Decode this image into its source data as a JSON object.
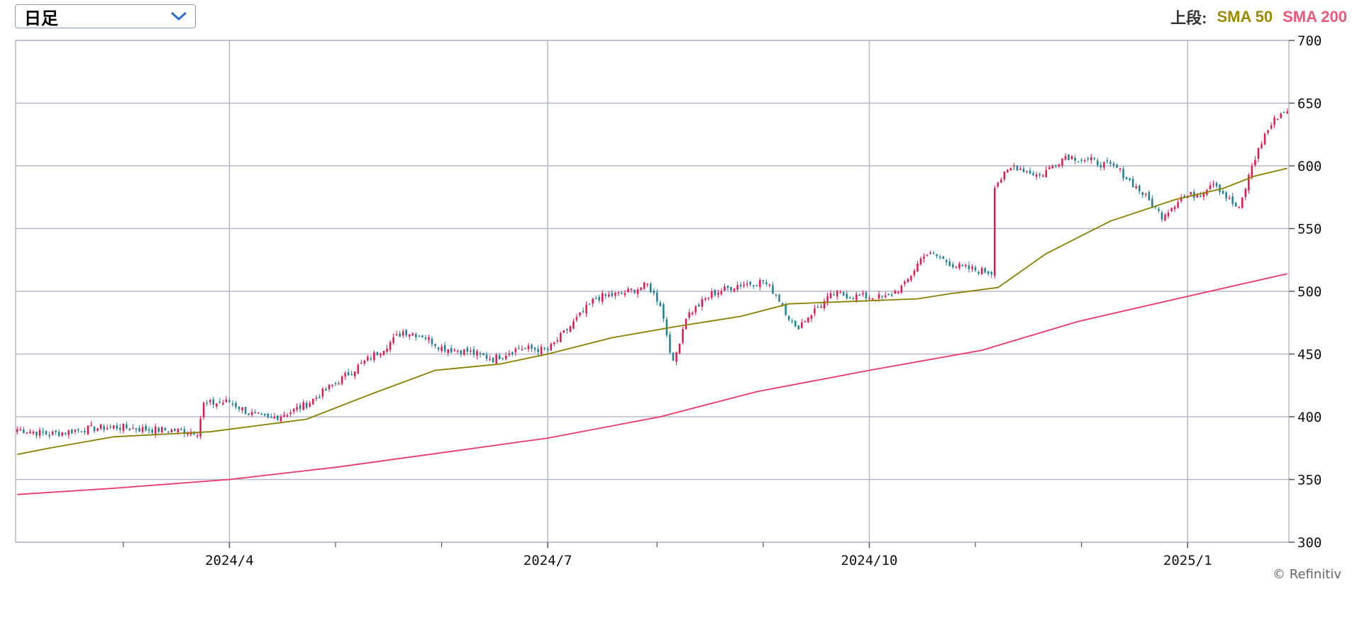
{
  "period_select": {
    "value": "日足"
  },
  "legend": {
    "prefix": "上段:",
    "items": [
      {
        "name": "SMA 50",
        "color": "#9b8a00"
      },
      {
        "name": "SMA 200",
        "color": "#f0587a"
      }
    ]
  },
  "credit": "© Refinitiv",
  "colors": {
    "up": "#e8144e",
    "down": "#1e7f95",
    "grid": "#b8b8cc",
    "sma50": "#8a8000",
    "sma200": "#e8386a"
  },
  "chart_data": {
    "type": "candlestick",
    "y_ticks": [
      700,
      650,
      600,
      550,
      500,
      450,
      400,
      350,
      300
    ],
    "ylim": [
      300,
      700
    ],
    "x_tick_labels": [
      {
        "label": "2024/4",
        "index": 66
      },
      {
        "label": "2024/7",
        "index": 165
      },
      {
        "label": "2024/10",
        "index": 265
      },
      {
        "label": "2025/1",
        "index": 364
      }
    ],
    "n_days": 396,
    "minor_tick_indices": [
      33,
      99,
      132,
      199,
      232,
      298,
      331
    ],
    "closes_anchor": [
      [
        0,
        390
      ],
      [
        10,
        386
      ],
      [
        20,
        390
      ],
      [
        30,
        392
      ],
      [
        40,
        390
      ],
      [
        50,
        389
      ],
      [
        56,
        388
      ],
      [
        58,
        410
      ],
      [
        66,
        412
      ],
      [
        72,
        403
      ],
      [
        78,
        398
      ],
      [
        84,
        403
      ],
      [
        90,
        410
      ],
      [
        98,
        425
      ],
      [
        106,
        440
      ],
      [
        114,
        455
      ],
      [
        120,
        468
      ],
      [
        126,
        465
      ],
      [
        132,
        455
      ],
      [
        140,
        452
      ],
      [
        148,
        446
      ],
      [
        156,
        455
      ],
      [
        165,
        453
      ],
      [
        172,
        472
      ],
      [
        180,
        495
      ],
      [
        188,
        498
      ],
      [
        196,
        505
      ],
      [
        200,
        490
      ],
      [
        204,
        442
      ],
      [
        208,
        480
      ],
      [
        216,
        498
      ],
      [
        224,
        505
      ],
      [
        232,
        508
      ],
      [
        236,
        498
      ],
      [
        242,
        470
      ],
      [
        248,
        485
      ],
      [
        254,
        498
      ],
      [
        262,
        496
      ],
      [
        270,
        495
      ],
      [
        276,
        505
      ],
      [
        282,
        530
      ],
      [
        286,
        528
      ],
      [
        292,
        520
      ],
      [
        298,
        517
      ],
      [
        303,
        515
      ],
      [
        304,
        585
      ],
      [
        310,
        600
      ],
      [
        318,
        592
      ],
      [
        326,
        608
      ],
      [
        334,
        604
      ],
      [
        342,
        598
      ],
      [
        350,
        578
      ],
      [
        356,
        560
      ],
      [
        362,
        575
      ],
      [
        368,
        578
      ],
      [
        372,
        588
      ],
      [
        376,
        575
      ],
      [
        380,
        565
      ],
      [
        384,
        600
      ],
      [
        388,
        625
      ],
      [
        392,
        640
      ],
      [
        395,
        645
      ]
    ],
    "series": [
      {
        "name": "SMA 50",
        "points": [
          [
            0,
            370
          ],
          [
            10,
            375
          ],
          [
            30,
            384
          ],
          [
            60,
            388
          ],
          [
            75,
            393
          ],
          [
            90,
            398
          ],
          [
            110,
            418
          ],
          [
            130,
            437
          ],
          [
            150,
            442
          ],
          [
            165,
            450
          ],
          [
            185,
            463
          ],
          [
            205,
            472
          ],
          [
            225,
            480
          ],
          [
            240,
            490
          ],
          [
            260,
            492
          ],
          [
            280,
            494
          ],
          [
            290,
            498
          ],
          [
            305,
            503
          ],
          [
            320,
            530
          ],
          [
            340,
            556
          ],
          [
            360,
            573
          ],
          [
            375,
            582
          ],
          [
            385,
            592
          ],
          [
            395,
            598
          ]
        ]
      },
      {
        "name": "SMA 200",
        "points": [
          [
            0,
            338
          ],
          [
            30,
            343
          ],
          [
            66,
            350
          ],
          [
            100,
            360
          ],
          [
            165,
            383
          ],
          [
            200,
            400
          ],
          [
            230,
            420
          ],
          [
            265,
            437
          ],
          [
            300,
            453
          ],
          [
            330,
            476
          ],
          [
            364,
            496
          ],
          [
            395,
            514
          ]
        ]
      }
    ]
  }
}
